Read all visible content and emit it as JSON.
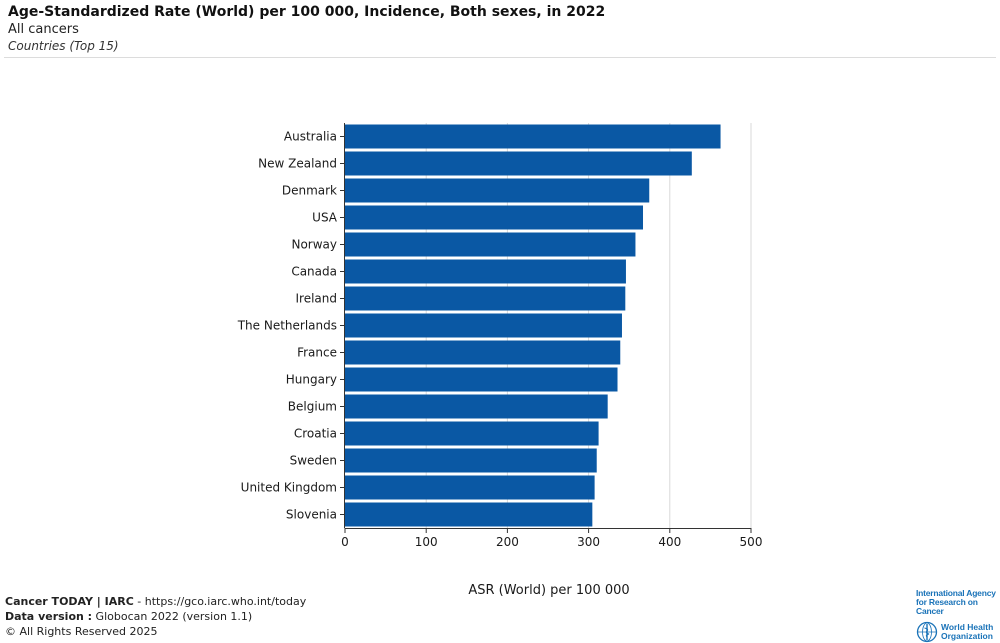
{
  "header": {
    "title": "Age-Standardized Rate (World) per 100 000, Incidence, Both sexes, in 2022",
    "subtitle": "All cancers",
    "subsubtitle": "Countries (Top 15)"
  },
  "chart_data": {
    "type": "bar",
    "orientation": "horizontal",
    "categories": [
      "Australia",
      "New Zealand",
      "Denmark",
      "USA",
      "Norway",
      "Canada",
      "Ireland",
      "The Netherlands",
      "France",
      "Hungary",
      "Belgium",
      "Croatia",
      "Sweden",
      "United Kingdom",
      "Slovenia"
    ],
    "values": [
      462.5,
      427.1,
      374.7,
      367.0,
      357.7,
      346.0,
      345.2,
      341.1,
      339.0,
      335.6,
      323.5,
      312.3,
      310.0,
      307.4,
      304.6
    ],
    "xlabel": "ASR (World) per 100 000",
    "ylabel": "",
    "xlim": [
      0,
      500
    ],
    "xticks": [
      0,
      100,
      200,
      300,
      400,
      500
    ],
    "grid": "vertical",
    "bar_color": "#0a58a4"
  },
  "footer": {
    "brand": "Cancer TODAY | IARC",
    "url": " - https://gco.iarc.who.int/today",
    "data_version_label": "Data version :",
    "data_version_value": " Globocan 2022 (version 1.1)",
    "copyright": "© All Rights Reserved 2025"
  },
  "logos": {
    "iarc_line1": "International Agency",
    "iarc_line2": "for Research on Cancer",
    "who_line1": "World Health",
    "who_line2": "Organization",
    "iarc_color": "#1a73b8"
  }
}
